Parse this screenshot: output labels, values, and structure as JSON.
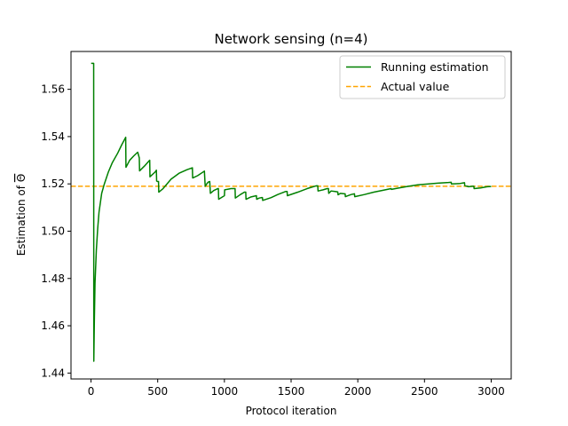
{
  "chart_data": {
    "type": "line",
    "title": "Network sensing (n=4)",
    "xlabel": "Protocol iteration",
    "ylabel_prefix": "Estimation of ",
    "ylabel_symbol": "Θ",
    "xlim": [
      -150,
      3150
    ],
    "ylim": [
      1.4375,
      1.576
    ],
    "xticks": [
      0,
      500,
      1000,
      1500,
      2000,
      2500,
      3000
    ],
    "yticks": [
      1.44,
      1.46,
      1.48,
      1.5,
      1.52,
      1.54,
      1.56
    ],
    "ytick_labels": [
      "1.44",
      "1.46",
      "1.48",
      "1.50",
      "1.52",
      "1.54",
      "1.56"
    ],
    "grid": false,
    "legend_position": "top-right",
    "series": [
      {
        "name": "Running estimation",
        "color": "#008000",
        "style": "solid",
        "x": [
          1,
          20,
          21,
          25,
          30,
          40,
          50,
          60,
          80,
          100,
          130,
          160,
          200,
          230,
          260,
          262,
          290,
          320,
          350,
          362,
          364,
          400,
          440,
          442,
          480,
          490,
          492,
          500,
          506,
          508,
          540,
          600,
          660,
          720,
          760,
          762,
          800,
          850,
          855,
          857,
          870,
          880,
          890,
          893,
          895,
          920,
          950,
          955,
          957,
          1000,
          1002,
          1050,
          1080,
          1082,
          1120,
          1150,
          1160,
          1162,
          1200,
          1240,
          1242,
          1260,
          1280,
          1285,
          1287,
          1350,
          1400,
          1460,
          1470,
          1472,
          1550,
          1620,
          1690,
          1700,
          1702,
          1740,
          1770,
          1780,
          1782,
          1800,
          1830,
          1850,
          1852,
          1870,
          1900,
          1905,
          1907,
          1950,
          1975,
          1977,
          2050,
          2120,
          2190,
          2250,
          2252,
          2300,
          2380,
          2450,
          2530,
          2600,
          2680,
          2700,
          2702,
          2760,
          2790,
          2800,
          2802,
          2830,
          2860,
          2870,
          2872,
          2920,
          2970,
          3000
        ],
        "y": [
          1.571,
          1.571,
          1.445,
          1.462,
          1.478,
          1.492,
          1.501,
          1.508,
          1.516,
          1.52,
          1.525,
          1.529,
          1.533,
          1.5365,
          1.5397,
          1.527,
          1.53,
          1.5318,
          1.5334,
          1.531,
          1.5255,
          1.5275,
          1.53,
          1.523,
          1.525,
          1.5258,
          1.5212,
          1.521,
          1.521,
          1.5165,
          1.518,
          1.522,
          1.5245,
          1.526,
          1.5268,
          1.5225,
          1.5235,
          1.5254,
          1.52,
          1.519,
          1.5202,
          1.5208,
          1.521,
          1.518,
          1.516,
          1.5172,
          1.518,
          1.518,
          1.5135,
          1.515,
          1.5175,
          1.518,
          1.518,
          1.514,
          1.5155,
          1.5165,
          1.5165,
          1.5135,
          1.5145,
          1.515,
          1.5135,
          1.514,
          1.5142,
          1.5142,
          1.513,
          1.5142,
          1.5155,
          1.5168,
          1.5168,
          1.515,
          1.5165,
          1.518,
          1.5192,
          1.5192,
          1.517,
          1.5175,
          1.518,
          1.518,
          1.516,
          1.517,
          1.5168,
          1.5166,
          1.5154,
          1.516,
          1.5158,
          1.5158,
          1.5146,
          1.5155,
          1.5158,
          1.5146,
          1.5155,
          1.5165,
          1.5173,
          1.518,
          1.5177,
          1.5182,
          1.519,
          1.5196,
          1.52,
          1.5203,
          1.5206,
          1.5207,
          1.52,
          1.5201,
          1.5204,
          1.5205,
          1.5193,
          1.5188,
          1.519,
          1.519,
          1.518,
          1.5183,
          1.5188,
          1.5189
        ]
      },
      {
        "name": "Actual value",
        "color": "#ffa500",
        "style": "dashed",
        "y_constant": 1.519
      }
    ]
  }
}
